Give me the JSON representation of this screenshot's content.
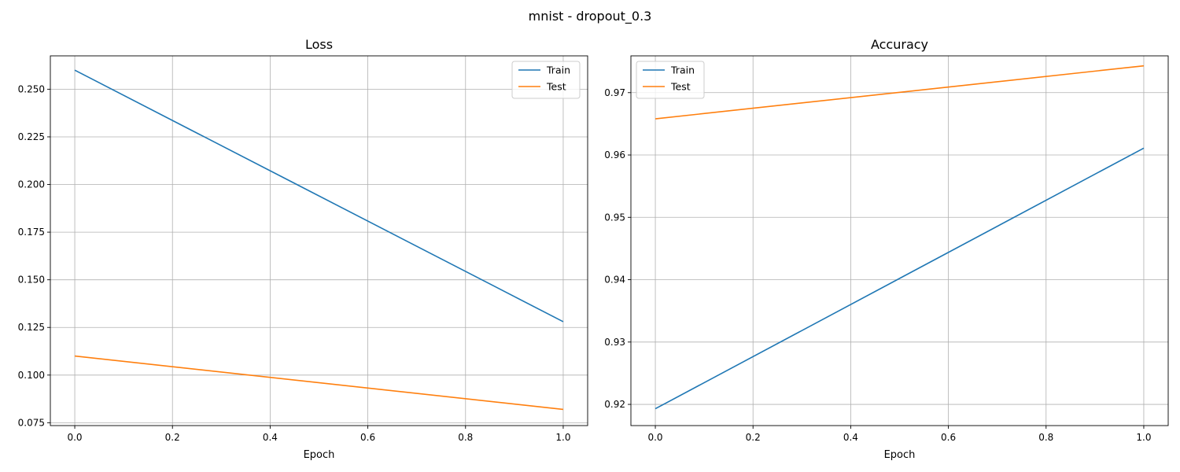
{
  "figure": {
    "title": "mnist - dropout_0.3"
  },
  "colors": {
    "train": "#1f77b4",
    "test": "#ff7f0e",
    "grid": "#b0b0b0"
  },
  "chart_data": [
    {
      "type": "line",
      "title": "Loss",
      "xlabel": "Epoch",
      "ylabel": "",
      "xlim": [
        -0.05,
        1.05
      ],
      "ylim": [
        0.0735,
        0.2675
      ],
      "xticks": [
        0.0,
        0.2,
        0.4,
        0.6,
        0.8,
        1.0
      ],
      "xtick_labels": [
        "0.0",
        "0.2",
        "0.4",
        "0.6",
        "0.8",
        "1.0"
      ],
      "yticks": [
        0.075,
        0.1,
        0.125,
        0.15,
        0.175,
        0.2,
        0.225,
        0.25
      ],
      "ytick_labels": [
        "0.075",
        "0.100",
        "0.125",
        "0.150",
        "0.175",
        "0.200",
        "0.225",
        "0.250"
      ],
      "grid": true,
      "legend": "upper right",
      "x": [
        0,
        1
      ],
      "series": [
        {
          "name": "Train",
          "values": [
            0.26,
            0.128
          ]
        },
        {
          "name": "Test",
          "values": [
            0.11,
            0.082
          ]
        }
      ]
    },
    {
      "type": "line",
      "title": "Accuracy",
      "xlabel": "Epoch",
      "ylabel": "",
      "xlim": [
        -0.05,
        1.05
      ],
      "ylim": [
        0.9166,
        0.9759
      ],
      "xticks": [
        0.0,
        0.2,
        0.4,
        0.6,
        0.8,
        1.0
      ],
      "xtick_labels": [
        "0.0",
        "0.2",
        "0.4",
        "0.6",
        "0.8",
        "1.0"
      ],
      "yticks": [
        0.92,
        0.93,
        0.94,
        0.95,
        0.96,
        0.97
      ],
      "ytick_labels": [
        "0.92",
        "0.93",
        "0.94",
        "0.95",
        "0.96",
        "0.97"
      ],
      "grid": true,
      "legend": "upper left",
      "x": [
        0,
        1
      ],
      "series": [
        {
          "name": "Train",
          "values": [
            0.9193,
            0.9611
          ]
        },
        {
          "name": "Test",
          "values": [
            0.9658,
            0.9743
          ]
        }
      ]
    }
  ]
}
